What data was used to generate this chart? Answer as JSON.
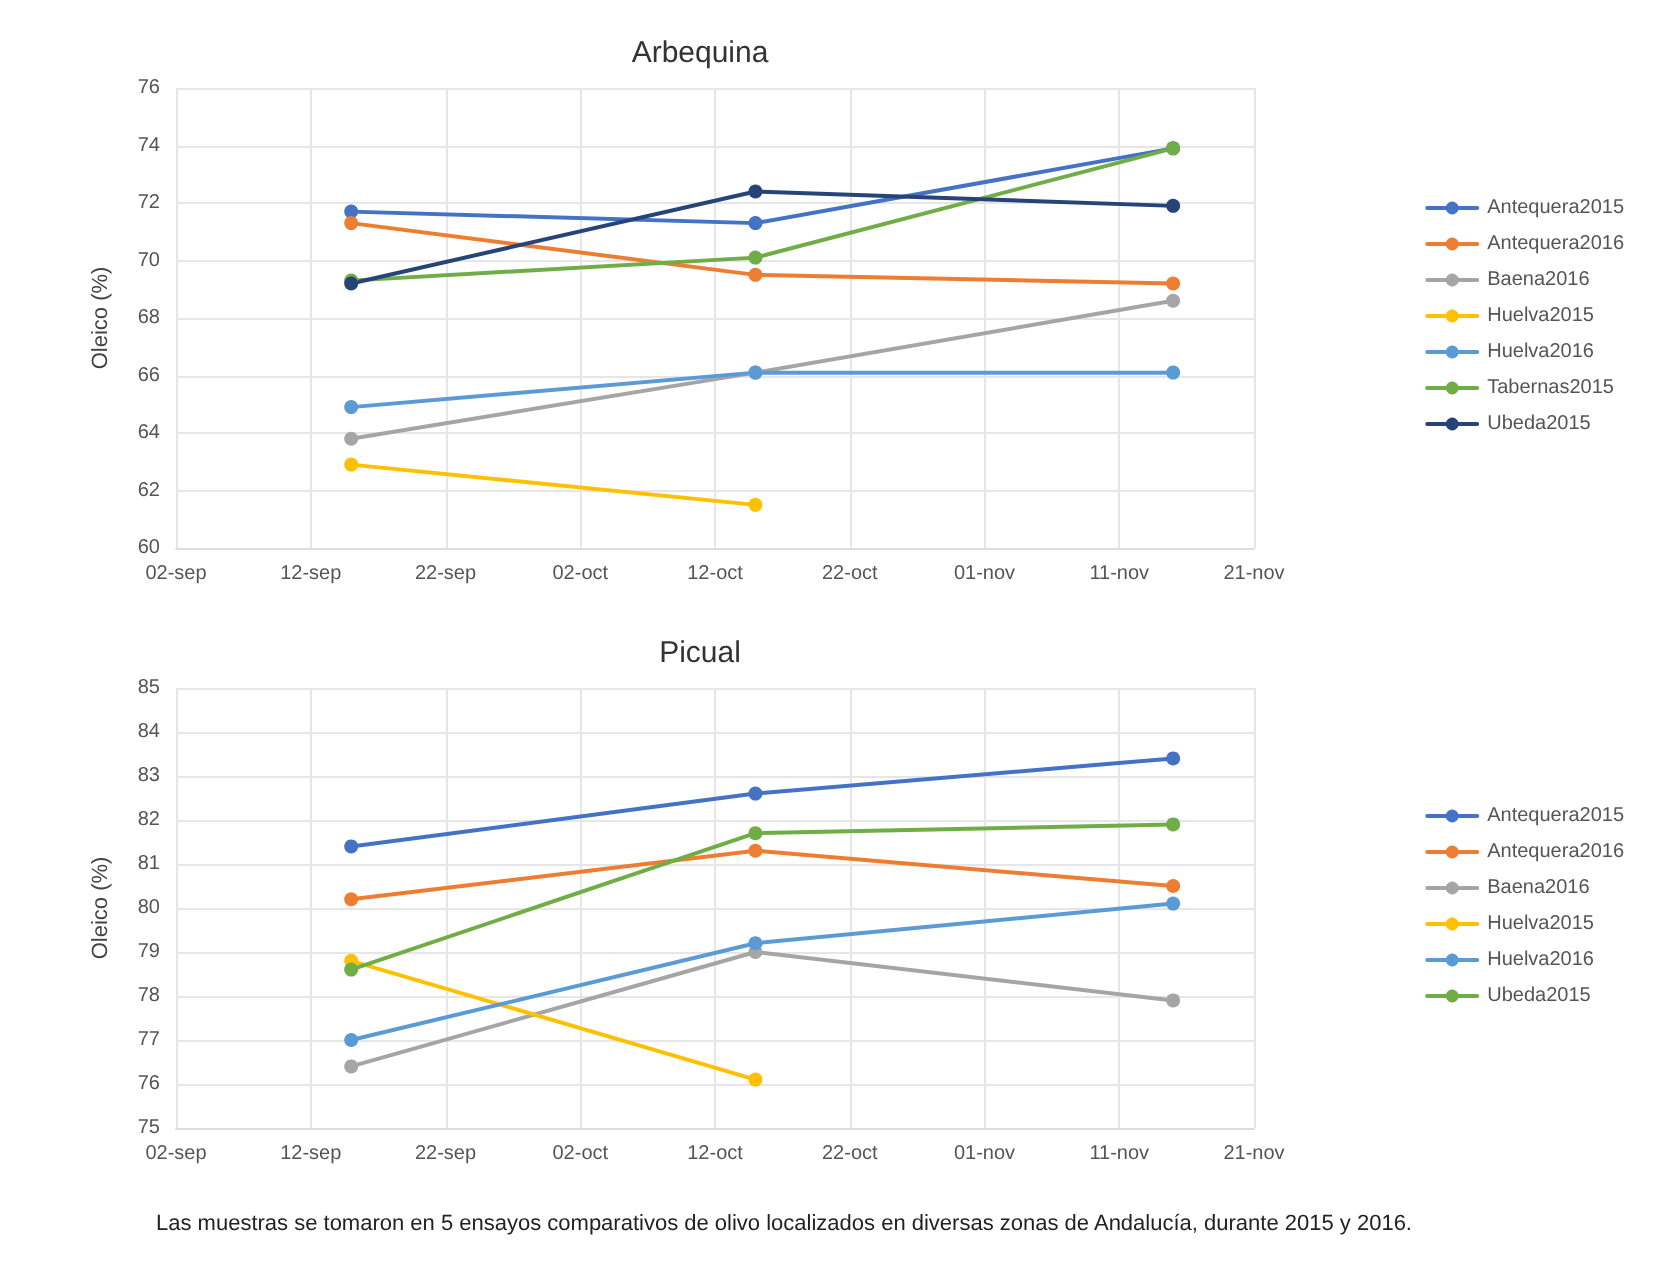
{
  "chart_data": [
    {
      "type": "line",
      "title": "Arbequina",
      "ylabel": "Oleico (%)",
      "x": [
        "--09-15",
        "--10-15",
        "--11-15"
      ],
      "xlim": [
        "--09-02",
        "--11-21"
      ],
      "xticks": [
        {
          "value": "--09-02",
          "label": "02-sep"
        },
        {
          "value": "--09-12",
          "label": "12-sep"
        },
        {
          "value": "--09-22",
          "label": "22-sep"
        },
        {
          "value": "--10-02",
          "label": "02-oct"
        },
        {
          "value": "--10-12",
          "label": "12-oct"
        },
        {
          "value": "--10-22",
          "label": "22-oct"
        },
        {
          "value": "--11-01",
          "label": "01-nov"
        },
        {
          "value": "--11-11",
          "label": "11-nov"
        },
        {
          "value": "--11-21",
          "label": "21-nov"
        }
      ],
      "ylim": [
        60,
        76
      ],
      "yticks": [
        60,
        62,
        64,
        66,
        68,
        70,
        72,
        74,
        76
      ],
      "grid": true,
      "legend": "right",
      "marker": "circle",
      "series": [
        {
          "name": "Antequera2015",
          "color": "#4472c4",
          "values": [
            71.7,
            71.3,
            73.9
          ]
        },
        {
          "name": "Antequera2016",
          "color": "#ed7d31",
          "values": [
            71.3,
            69.5,
            69.2
          ]
        },
        {
          "name": "Baena2016",
          "color": "#a5a5a5",
          "values": [
            63.8,
            66.1,
            68.6
          ]
        },
        {
          "name": "Huelva2015",
          "color": "#ffc000",
          "values": [
            62.9,
            61.5,
            null
          ]
        },
        {
          "name": "Huelva2016",
          "color": "#5b9bd5",
          "values": [
            64.9,
            66.1,
            66.1
          ]
        },
        {
          "name": "Tabernas2015",
          "color": "#70ad47",
          "values": [
            69.3,
            70.1,
            73.9
          ]
        },
        {
          "name": "Ubeda2015",
          "color": "#264478",
          "values": [
            69.2,
            72.4,
            71.9
          ]
        }
      ]
    },
    {
      "type": "line",
      "title": "Picual",
      "ylabel": "Oleico (%)",
      "x": [
        "--09-15",
        "--10-15",
        "--11-15"
      ],
      "xlim": [
        "--09-02",
        "--11-21"
      ],
      "xticks": [
        {
          "value": "--09-02",
          "label": "02-sep"
        },
        {
          "value": "--09-12",
          "label": "12-sep"
        },
        {
          "value": "--09-22",
          "label": "22-sep"
        },
        {
          "value": "--10-02",
          "label": "02-oct"
        },
        {
          "value": "--10-12",
          "label": "12-oct"
        },
        {
          "value": "--10-22",
          "label": "22-oct"
        },
        {
          "value": "--11-01",
          "label": "01-nov"
        },
        {
          "value": "--11-11",
          "label": "11-nov"
        },
        {
          "value": "--11-21",
          "label": "21-nov"
        }
      ],
      "ylim": [
        75,
        85
      ],
      "yticks": [
        75,
        76,
        77,
        78,
        79,
        80,
        81,
        82,
        83,
        84,
        85
      ],
      "grid": true,
      "legend": "right",
      "marker": "circle",
      "annotations": [
        "Las muestras se tomaron en 5 ensayos comparativos de olivo localizados en diversas zonas de Andalucía, durante 2015 y 2016."
      ],
      "series": [
        {
          "name": "Antequera2015",
          "color": "#4472c4",
          "values": [
            81.4,
            82.6,
            83.4
          ]
        },
        {
          "name": "Antequera2016",
          "color": "#ed7d31",
          "values": [
            80.2,
            81.3,
            80.5
          ]
        },
        {
          "name": "Baena2016",
          "color": "#a5a5a5",
          "values": [
            76.4,
            79.0,
            77.9
          ]
        },
        {
          "name": "Huelva2015",
          "color": "#ffc000",
          "values": [
            78.8,
            76.1,
            null
          ]
        },
        {
          "name": "Huelva2016",
          "color": "#5b9bd5",
          "values": [
            77.0,
            79.2,
            80.1
          ]
        },
        {
          "name": "Ubeda2015",
          "color": "#70ad47",
          "values": [
            78.6,
            81.7,
            81.9
          ]
        }
      ]
    }
  ]
}
